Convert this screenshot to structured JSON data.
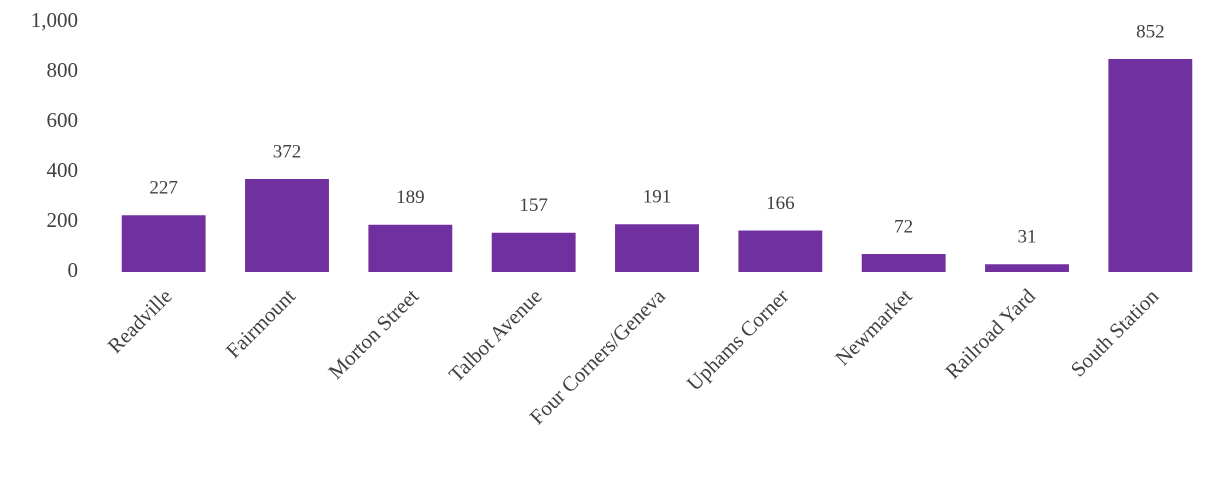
{
  "chart_data": {
    "type": "bar",
    "categories": [
      "Readville",
      "Fairmount",
      "Morton Street",
      "Talbot Avenue",
      "Four Corners/Geneva",
      "Uphams Corner",
      "Newmarket",
      "Railroad Yard",
      "South Station"
    ],
    "values": [
      227,
      372,
      189,
      157,
      191,
      166,
      72,
      31,
      852
    ],
    "color": "#7030a0",
    "ylim": [
      0,
      1000
    ],
    "yticks": [
      0,
      200,
      400,
      600,
      800,
      {
        "value": 1000,
        "label": "1,000"
      }
    ],
    "grid": false
  }
}
